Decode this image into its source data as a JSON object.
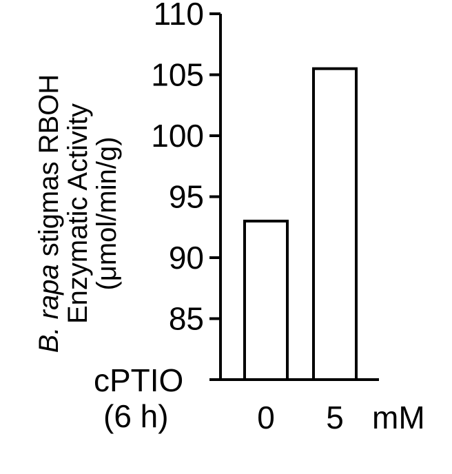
{
  "chart_data": {
    "type": "bar",
    "title": "",
    "categories": [
      "0",
      "5"
    ],
    "values": [
      93,
      105.5
    ],
    "x_unit": "mM",
    "x_treatment_line1": "cPTIO",
    "x_treatment_line2": "(6 h)",
    "ylabel_line1_italic": "B. rapa",
    "ylabel_line1_rest": " stigmas RBOH",
    "ylabel_line2": "Enzymatic Activity",
    "ylabel_line3": "(μmol/min/g)",
    "ylim": [
      80,
      110
    ],
    "yticks": [
      "85",
      "90",
      "95",
      "100",
      "105",
      "110"
    ],
    "ytick_values": [
      85,
      90,
      95,
      100,
      105,
      110
    ],
    "bar_fill": "#ffffff",
    "bar_stroke": "#000000",
    "grid": false,
    "legend": "none"
  }
}
